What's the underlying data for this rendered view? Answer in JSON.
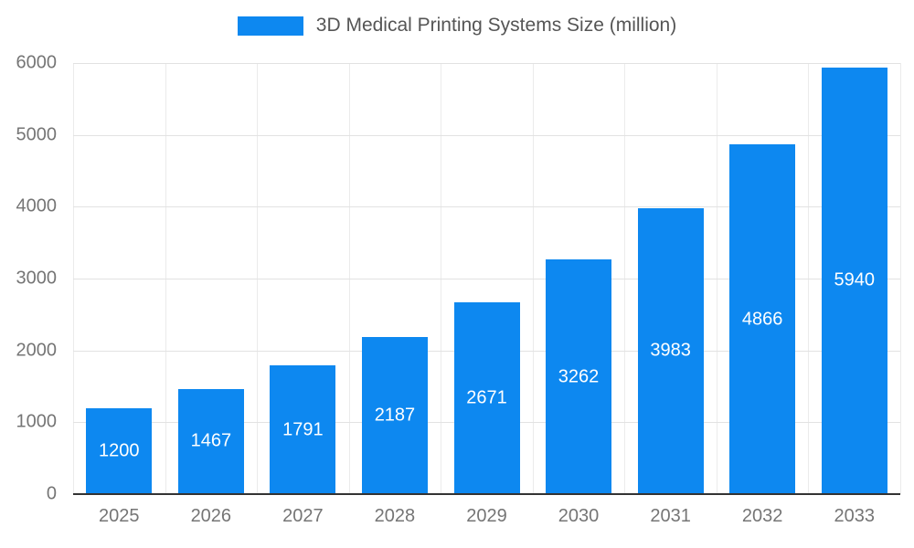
{
  "chart_data": {
    "type": "bar",
    "title": "3D Medical Printing Systems Size (million)",
    "categories": [
      "2025",
      "2026",
      "2027",
      "2028",
      "2029",
      "2030",
      "2031",
      "2032",
      "2033"
    ],
    "values": [
      1200,
      1467,
      1791,
      2187,
      2671,
      3262,
      3983,
      4866,
      5940
    ],
    "series": [
      {
        "name": "3D Medical Printing Systems Size (million)",
        "values": [
          1200,
          1467,
          1791,
          2187,
          2671,
          3262,
          3983,
          4866,
          5940
        ]
      }
    ],
    "xlabel": "",
    "ylabel": "",
    "ylim": [
      0,
      6000
    ],
    "ytick_step": 1000,
    "grid": true,
    "legend_position": "top",
    "bar_color": "#0d88f0",
    "value_label_color": "#ffffff",
    "axis_label_color": "#757575",
    "title_color": "#555555",
    "gridline_color": "#e2e2e2",
    "axis_line_color": "#333333"
  }
}
